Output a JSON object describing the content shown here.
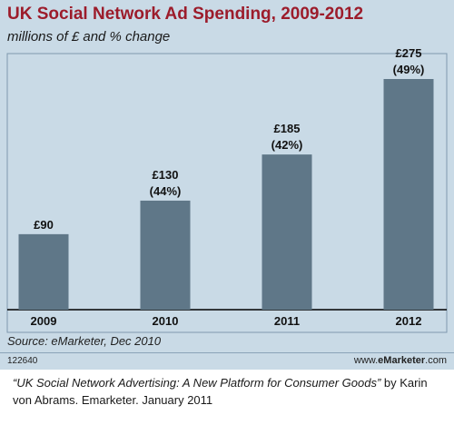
{
  "chart_data": {
    "type": "bar",
    "title": "UK Social Network Ad Spending, 2009-2012",
    "subtitle": "millions of £ and % change",
    "categories": [
      "2009",
      "2010",
      "2011",
      "2012"
    ],
    "values": [
      90,
      130,
      185,
      275
    ],
    "value_labels": [
      "£90",
      "£130",
      "£185",
      "£275"
    ],
    "change_labels": [
      "",
      "(44%)",
      "(42%)",
      "(49%)"
    ],
    "ylim": [
      0,
      300
    ],
    "grid": false,
    "bar_color": "#5f7788",
    "background_color": "#c9dae6"
  },
  "source": "Source: eMarketer, Dec 2010",
  "chart_id": "122640",
  "brand": {
    "prefix": "www.",
    "name": "eMarketer",
    "suffix": ".com"
  },
  "caption": {
    "quote": "“UK Social Network Advertising: A New Platform for Consumer Goods”",
    "rest": " by Karin von Abrams. Emarketer. January 2011"
  }
}
